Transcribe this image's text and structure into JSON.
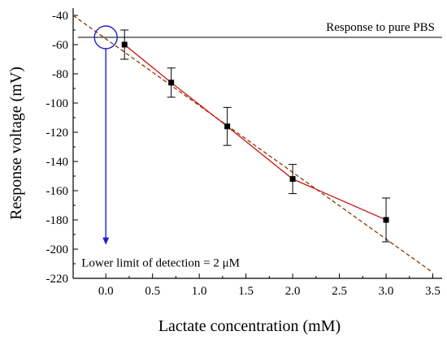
{
  "chart_data": {
    "type": "line",
    "xlabel": "Lactate concentration (mM)",
    "ylabel": "Response voltage (mV)",
    "xlim": [
      -0.35,
      3.6
    ],
    "ylim": [
      -220,
      -35
    ],
    "x_ticks": [
      0.0,
      0.5,
      1.0,
      1.5,
      2.0,
      2.5,
      3.0,
      3.5
    ],
    "x_tick_labels": [
      "0.0",
      "0.5",
      "1.0",
      "1.5",
      "2.0",
      "2.5",
      "3.0",
      "3.5"
    ],
    "y_ticks": [
      -40,
      -60,
      -80,
      -100,
      -120,
      -140,
      -160,
      -180,
      -200,
      -220
    ],
    "y_tick_labels": [
      "-40",
      "-60",
      "-80",
      "-100",
      "-120",
      "-140",
      "-160",
      "-180",
      "-200",
      "-220"
    ],
    "grid": false,
    "series": [
      {
        "kind": "measured",
        "x": [
          0.2,
          0.7,
          1.3,
          2.0,
          3.0
        ],
        "y": [
          -60,
          -86,
          -116,
          -152,
          -180
        ],
        "error": [
          10,
          10,
          13,
          10,
          15
        ],
        "color": "#cc0000"
      },
      {
        "kind": "fit",
        "x": [
          -0.35,
          3.5
        ],
        "y": [
          -40,
          -216
        ],
        "color": "#8b3a00",
        "dashed": true
      }
    ],
    "baseline": {
      "y": -55,
      "label": "Response to pure PBS",
      "color": "#000000"
    },
    "detection": {
      "x": 0.0,
      "y": -55,
      "arrow_to_y": -197,
      "label": "Lower limit of detection = 2 μM",
      "color": "#2020cc"
    }
  }
}
